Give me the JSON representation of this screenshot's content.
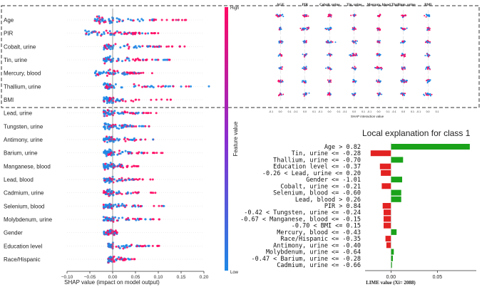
{
  "chart_data": [
    {
      "type": "scatter",
      "subtype": "shap-beeswarm",
      "features": [
        "Age",
        "PIR",
        "Cobalt, urine",
        "Tin, urine",
        "Mercury, blood",
        "Thallium, urine",
        "BMI",
        "Lead, urine",
        "Tungsten, urine",
        "Antimony, urine",
        "Barium, urine",
        "Manganese, blood",
        "Lead, blood",
        "Cadmium, urine",
        "Selenium, blood",
        "Molybdenum, urine",
        "Gender",
        "Education level",
        "Race/Hispanic"
      ],
      "spread": [
        [
          -0.04,
          0.17
        ],
        [
          -0.06,
          0.11
        ],
        [
          -0.02,
          0.17
        ],
        [
          -0.02,
          0.13
        ],
        [
          -0.04,
          0.09
        ],
        [
          -0.02,
          0.22
        ],
        [
          -0.02,
          0.13
        ],
        [
          -0.02,
          0.1
        ],
        [
          -0.02,
          0.08
        ],
        [
          -0.02,
          0.1
        ],
        [
          -0.02,
          0.11
        ],
        [
          -0.02,
          0.06
        ],
        [
          -0.02,
          0.09
        ],
        [
          -0.02,
          0.1
        ],
        [
          -0.02,
          0.12
        ],
        [
          -0.02,
          0.11
        ],
        [
          -0.02,
          0.01
        ],
        [
          -0.01,
          0.11
        ],
        [
          -0.01,
          0.05
        ]
      ],
      "xlim": [
        -0.1,
        0.2
      ],
      "xticks": [
        "−0.10",
        "−0.05",
        "0.00",
        "0.05",
        "0.10",
        "0.15",
        "0.20"
      ],
      "tick_values": [
        -0.1,
        -0.05,
        0.0,
        0.05,
        0.1,
        0.15,
        0.2
      ],
      "xlabel": "SHAP value (impact on model output)",
      "colorbar": {
        "label": "Feature value",
        "high": "High",
        "low": "Low",
        "high_color": "#ff0a64",
        "low_color": "#1e88e5"
      }
    },
    {
      "type": "scatter",
      "subtype": "shap-interaction-grid",
      "columns": [
        "AGE",
        "PIR",
        "Cobalt, urine",
        "Tin, urine",
        "Mercury, blood",
        "Thallium, urine",
        "BMI"
      ],
      "rows": 7,
      "xticks": [
        "-0.1",
        "0.0",
        "0.1"
      ],
      "xlabel": "SHAP interaction value"
    },
    {
      "type": "bar",
      "orientation": "horizontal",
      "title": "Local explanation for class 1",
      "categories": [
        "Age > 0.82",
        "Tin, urine <= -0.28",
        "Thallium, urine <= -0.70",
        "Education level <= -0.37",
        "-0.26 < Lead, urine <= 0.20",
        "Gender <= -1.01",
        "Cobalt, urine <= -0.21",
        "Selenium, blood <= -0.60",
        "Lead, blood > 0.26",
        "PIR > 0.84",
        "-0.42 < Tungsten, urine <= -0.24",
        "-0.67 < Manganese, blood <= -0.15",
        "-0.70 < BMI <= 0.15",
        "Mercury, blood <= -0.43",
        "Race/Hispanic <= -0.35",
        "Antimony, urine <= -0.40",
        "Molybdenum, urine <= -0.64",
        "-0.47 < Barium, urine <= -0.28",
        "Cadmium, urine <= -0.66"
      ],
      "values": [
        0.085,
        -0.022,
        0.013,
        -0.012,
        -0.011,
        0.012,
        -0.01,
        0.011,
        0.011,
        -0.009,
        -0.008,
        -0.008,
        -0.008,
        0.006,
        -0.006,
        -0.005,
        0.003,
        0.002,
        0.001
      ],
      "xlim": [
        -0.028,
        0.092
      ],
      "xticks": [
        "0.00",
        "0.05"
      ],
      "tick_values": [
        0.0,
        0.05
      ],
      "xlabel": "LIME value (Xi= 2088)",
      "positive_color": "#1aa31a",
      "negative_color": "#e32222"
    }
  ]
}
